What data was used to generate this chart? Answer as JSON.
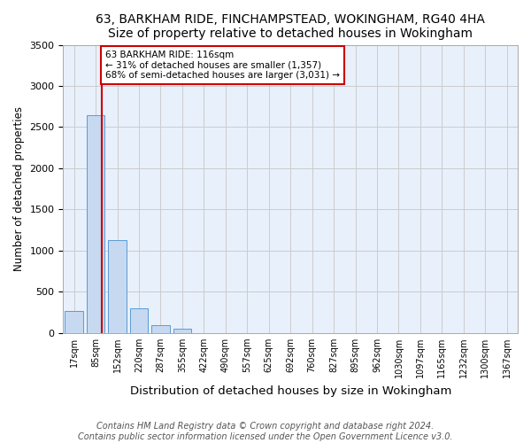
{
  "title": "63, BARKHAM RIDE, FINCHAMPSTEAD, WOKINGHAM, RG40 4HA",
  "subtitle": "Size of property relative to detached houses in Wokingham",
  "xlabel": "Distribution of detached houses by size in Wokingham",
  "ylabel": "Number of detached properties",
  "bar_labels": [
    "17sqm",
    "85sqm",
    "152sqm",
    "220sqm",
    "287sqm",
    "355sqm",
    "422sqm",
    "490sqm",
    "557sqm",
    "625sqm",
    "692sqm",
    "760sqm",
    "827sqm",
    "895sqm",
    "962sqm",
    "1030sqm",
    "1097sqm",
    "1165sqm",
    "1232sqm",
    "1300sqm",
    "1367sqm"
  ],
  "bar_values": [
    270,
    2640,
    1130,
    295,
    100,
    50,
    0,
    0,
    0,
    0,
    0,
    0,
    0,
    0,
    0,
    0,
    0,
    0,
    0,
    0,
    0
  ],
  "bar_color": "#c6d9f0",
  "bar_edge_color": "#5b9bd5",
  "annotation_text": "63 BARKHAM RIDE: 116sqm\n← 31% of detached houses are smaller (1,357)\n68% of semi-detached houses are larger (3,031) →",
  "annotation_box_color": "#ffffff",
  "annotation_box_edge": "#cc0000",
  "property_line_color": "#cc0000",
  "property_line_x": 1.3,
  "ylim": [
    0,
    3500
  ],
  "yticks": [
    0,
    500,
    1000,
    1500,
    2000,
    2500,
    3000,
    3500
  ],
  "footnote1": "Contains HM Land Registry data © Crown copyright and database right 2024.",
  "footnote2": "Contains public sector information licensed under the Open Government Licence v3.0.",
  "title_fontsize": 10,
  "xlabel_fontsize": 9.5,
  "ylabel_fontsize": 8.5,
  "footnote_fontsize": 7,
  "tick_fontsize": 7,
  "ytick_fontsize": 8
}
